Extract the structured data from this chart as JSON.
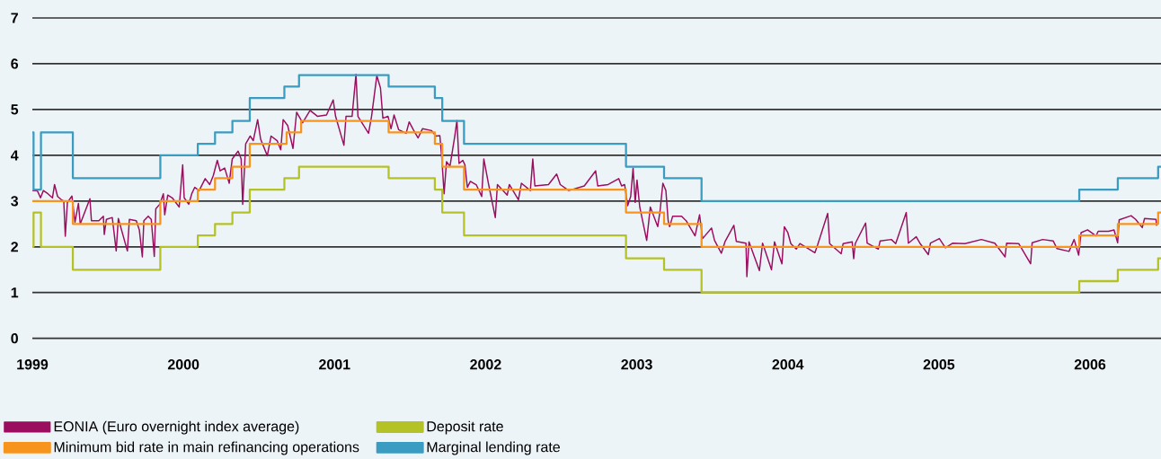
{
  "chart_data": {
    "type": "line",
    "xlim": [
      1999,
      2006.47
    ],
    "ylim": [
      0,
      7
    ],
    "xticks": [
      1999,
      2000,
      2001,
      2002,
      2003,
      2004,
      2005,
      2006
    ],
    "yticks": [
      0,
      1,
      2,
      3,
      4,
      5,
      6,
      7
    ],
    "grid": "y",
    "legend": "bottom",
    "series": [
      {
        "name": "EONIA (Euro overnight index average)",
        "color": "#9b0d5f",
        "x": [
          1999.0,
          1999.034,
          1999.054,
          1999.073,
          1999.103,
          1999.133,
          1999.147,
          1999.167,
          1999.192,
          1999.208,
          1999.218,
          1999.232,
          1999.262,
          1999.282,
          1999.305,
          1999.317,
          1999.381,
          1999.391,
          1999.44,
          1999.47,
          1999.476,
          1999.49,
          1999.529,
          1999.555,
          1999.569,
          1999.629,
          1999.642,
          1999.688,
          1999.708,
          1999.728,
          1999.738,
          1999.767,
          1999.787,
          1999.807,
          1999.817,
          1999.843,
          1999.867,
          1999.876,
          1999.896,
          1999.926,
          1999.972,
          1999.995,
          2000.005,
          2000.035,
          2000.055,
          2000.075,
          2000.104,
          2000.144,
          2000.174,
          2000.198,
          2000.224,
          2000.243,
          2000.273,
          2000.303,
          2000.323,
          2000.362,
          2000.382,
          2000.392,
          2000.412,
          2000.442,
          2000.462,
          2000.491,
          2000.511,
          2000.555,
          2000.58,
          2000.62,
          2000.644,
          2000.66,
          2000.69,
          2000.725,
          2000.749,
          2000.789,
          2000.838,
          2000.888,
          2000.947,
          2000.991,
          2001.007,
          2001.062,
          2001.076,
          2001.116,
          2001.142,
          2001.155,
          2001.225,
          2001.245,
          2001.28,
          2001.304,
          2001.32,
          2001.354,
          2001.374,
          2001.394,
          2001.424,
          2001.474,
          2001.494,
          2001.523,
          2001.553,
          2001.582,
          2001.642,
          2001.671,
          2001.697,
          2001.711,
          2001.725,
          2001.741,
          2001.764,
          2001.796,
          2001.81,
          2001.824,
          2001.849,
          2001.863,
          2001.879,
          2001.899,
          2001.939,
          2001.974,
          2001.988,
          2002.018,
          2002.064,
          2002.078,
          2002.143,
          2002.157,
          2002.217,
          2002.237,
          2002.296,
          2002.312,
          2002.326,
          2002.416,
          2002.47,
          2002.494,
          2002.55,
          2002.653,
          2002.728,
          2002.742,
          2002.811,
          2002.881,
          2002.9,
          2002.92,
          2002.94,
          2002.96,
          2002.976,
          2002.99,
          2003.002,
          2003.02,
          2003.066,
          2003.09,
          2003.139,
          2003.155,
          2003.173,
          2003.193,
          2003.208,
          2003.218,
          2003.238,
          2003.297,
          2003.327,
          2003.386,
          2003.416,
          2003.436,
          2003.495,
          2003.515,
          2003.56,
          2003.584,
          2003.643,
          2003.659,
          2003.723,
          2003.729,
          2003.743,
          2003.812,
          2003.833,
          2003.892,
          2003.912,
          2003.961,
          2003.977,
          2004.0,
          2004.02,
          2004.056,
          2004.08,
          2004.179,
          2004.198,
          2004.264,
          2004.277,
          2004.353,
          2004.366,
          2004.426,
          2004.436,
          2004.446,
          2004.515,
          2004.525,
          2004.599,
          2004.611,
          2004.685,
          2004.714,
          2004.784,
          2004.798,
          2004.85,
          2004.874,
          2004.93,
          2004.944,
          2005.003,
          2005.043,
          2005.092,
          2005.172,
          2005.281,
          2005.37,
          2005.438,
          2005.448,
          2005.528,
          2005.607,
          2005.617,
          2005.687,
          2005.756,
          2005.782,
          2005.861,
          2005.895,
          2005.925,
          2005.941,
          2005.984,
          2006.04,
          2006.054,
          2006.123,
          2006.159,
          2006.183,
          2006.193,
          2006.272,
          2006.302,
          2006.346,
          2006.361,
          2006.437,
          2006.441
        ],
        "values": [
          3.23,
          3.22,
          3.07,
          3.23,
          3.16,
          3.07,
          3.36,
          3.1,
          3.03,
          3.0,
          2.23,
          2.97,
          3.11,
          2.54,
          2.95,
          2.5,
          3.05,
          2.57,
          2.57,
          2.67,
          2.27,
          2.6,
          2.64,
          1.91,
          2.62,
          1.91,
          2.6,
          2.57,
          2.37,
          1.78,
          2.57,
          2.67,
          2.6,
          1.79,
          2.83,
          2.93,
          3.16,
          2.7,
          3.13,
          3.07,
          2.87,
          3.79,
          3.07,
          2.93,
          3.16,
          3.3,
          3.23,
          3.49,
          3.36,
          3.56,
          3.89,
          3.66,
          3.72,
          3.39,
          3.92,
          4.09,
          3.92,
          2.93,
          4.25,
          4.42,
          4.32,
          4.78,
          4.35,
          3.99,
          4.42,
          4.32,
          4.12,
          4.78,
          4.65,
          4.15,
          4.94,
          4.71,
          4.98,
          4.85,
          4.88,
          5.21,
          4.85,
          4.22,
          4.85,
          4.85,
          5.77,
          4.85,
          4.48,
          4.85,
          5.74,
          5.47,
          4.81,
          4.85,
          4.58,
          4.88,
          4.56,
          4.48,
          4.73,
          4.55,
          4.38,
          4.58,
          4.54,
          4.42,
          4.43,
          3.89,
          3.16,
          3.86,
          3.76,
          4.42,
          4.76,
          3.82,
          3.89,
          3.79,
          3.3,
          3.43,
          3.35,
          3.1,
          3.92,
          3.39,
          2.64,
          3.36,
          3.13,
          3.36,
          3.03,
          3.39,
          3.23,
          3.92,
          3.33,
          3.36,
          3.59,
          3.36,
          3.23,
          3.33,
          3.66,
          3.33,
          3.36,
          3.49,
          3.33,
          3.36,
          2.9,
          3.1,
          3.72,
          2.97,
          3.46,
          2.87,
          2.14,
          2.87,
          2.44,
          2.8,
          3.39,
          3.23,
          2.57,
          2.44,
          2.67,
          2.67,
          2.57,
          2.24,
          2.7,
          2.18,
          2.41,
          2.14,
          1.86,
          2.11,
          2.47,
          2.12,
          2.08,
          1.35,
          2.11,
          1.48,
          2.08,
          1.5,
          2.11,
          1.63,
          2.44,
          2.31,
          2.07,
          1.95,
          2.07,
          1.87,
          2.05,
          2.73,
          2.07,
          1.85,
          2.07,
          2.11,
          1.74,
          2.07,
          2.52,
          2.08,
          1.95,
          2.13,
          2.16,
          2.07,
          2.75,
          2.08,
          2.22,
          2.08,
          1.83,
          2.08,
          2.18,
          1.98,
          2.08,
          2.07,
          2.16,
          2.08,
          1.78,
          2.08,
          2.07,
          1.63,
          2.09,
          2.16,
          2.13,
          1.96,
          1.9,
          2.16,
          1.82,
          2.31,
          2.37,
          2.24,
          2.34,
          2.34,
          2.37,
          2.09,
          2.59,
          2.68,
          2.6,
          2.42,
          2.62,
          2.6,
          2.46
        ]
      },
      {
        "name": "Deposit rate",
        "color": "#b5c225",
        "type": "step",
        "x": [
          1999.0,
          1999.008,
          1999.057,
          1999.268,
          1999.847,
          2000.095,
          2000.209,
          2000.324,
          2000.439,
          2000.668,
          2000.765,
          2001.358,
          2001.664,
          2001.713,
          2001.857,
          2002.929,
          2003.181,
          2003.429,
          2005.929,
          2006.184,
          2006.451,
          2006.47
        ],
        "values": [
          2,
          2.75,
          2,
          1.5,
          2,
          2.25,
          2.5,
          2.75,
          3.25,
          3.5,
          3.75,
          3.5,
          3.25,
          2.75,
          2.25,
          1.75,
          1.5,
          1,
          1.25,
          1.5,
          1.75,
          1.75
        ]
      },
      {
        "name": "Minimum bid rate in main refinancing operations",
        "color": "#f7941d",
        "type": "step",
        "x": [
          1999.0,
          1999.268,
          1999.847,
          2000.095,
          2000.209,
          2000.324,
          2000.439,
          2000.683,
          2000.779,
          2001.358,
          2001.664,
          2001.713,
          2001.857,
          2002.929,
          2003.181,
          2003.429,
          2005.929,
          2006.184,
          2006.451,
          2006.47
        ],
        "values": [
          3,
          2.5,
          3,
          3.25,
          3.5,
          3.75,
          4.25,
          4.5,
          4.75,
          4.5,
          4.25,
          3.75,
          3.25,
          2.75,
          2.5,
          2,
          2.25,
          2.5,
          2.75,
          2.75
        ]
      },
      {
        "name": "Marginal lending rate",
        "color": "#3a9cc0",
        "type": "step",
        "x": [
          1999.0,
          1999.008,
          1999.057,
          1999.268,
          1999.847,
          2000.095,
          2000.209,
          2000.324,
          2000.439,
          2000.668,
          2000.765,
          2001.358,
          2001.664,
          2001.713,
          2001.857,
          2002.929,
          2003.181,
          2003.429,
          2005.929,
          2006.184,
          2006.451,
          2006.47
        ],
        "values": [
          4.5,
          3.25,
          4.5,
          3.5,
          4,
          4.25,
          4.5,
          4.75,
          5.25,
          5.5,
          5.75,
          5.5,
          5.25,
          4.75,
          4.25,
          3.75,
          3.5,
          3,
          3.25,
          3.5,
          3.75,
          3.75
        ]
      }
    ]
  }
}
